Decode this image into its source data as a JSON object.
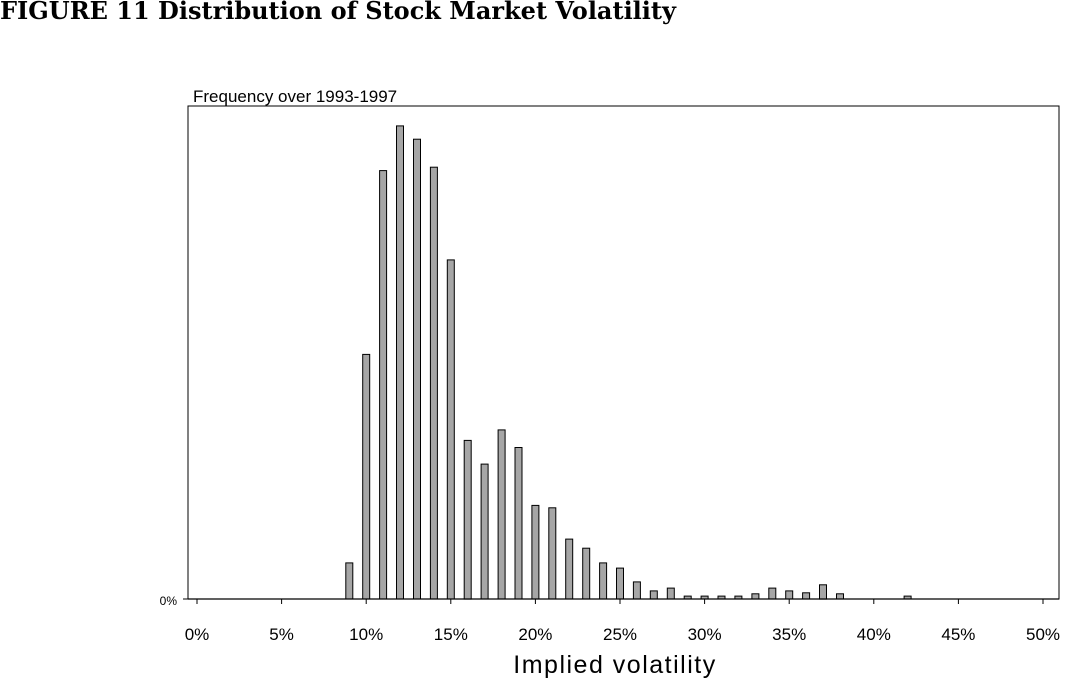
{
  "figure_title": "FIGURE 11 Distribution of Stock Market Volatility",
  "chart_data": {
    "type": "bar",
    "subtitle": "Frequency over 1993-1997",
    "xlabel": "Implied volatility",
    "ylabel": "",
    "y_tick_labels": [
      "0%"
    ],
    "x_tick_labels": [
      "0%",
      "5%",
      "10%",
      "15%",
      "20%",
      "25%",
      "30%",
      "35%",
      "40%",
      "45%",
      "50%"
    ],
    "xlim": [
      0,
      50
    ],
    "ylim": [
      0,
      1.0
    ],
    "grid": false,
    "legend": "none",
    "bar_color": "#a6a6a6",
    "x": [
      9,
      10,
      11,
      12,
      13,
      14,
      15,
      16,
      17,
      18,
      19,
      20,
      21,
      22,
      23,
      24,
      25,
      26,
      27,
      28,
      29,
      30,
      31,
      32,
      33,
      34,
      35,
      36,
      37,
      38,
      42
    ],
    "values": [
      0.076,
      0.515,
      0.902,
      0.996,
      0.968,
      0.909,
      0.714,
      0.334,
      0.284,
      0.356,
      0.319,
      0.197,
      0.192,
      0.126,
      0.107,
      0.076,
      0.065,
      0.036,
      0.017,
      0.023,
      0.006,
      0.006,
      0.006,
      0.006,
      0.011,
      0.023,
      0.017,
      0.013,
      0.03,
      0.011,
      0.006
    ]
  }
}
